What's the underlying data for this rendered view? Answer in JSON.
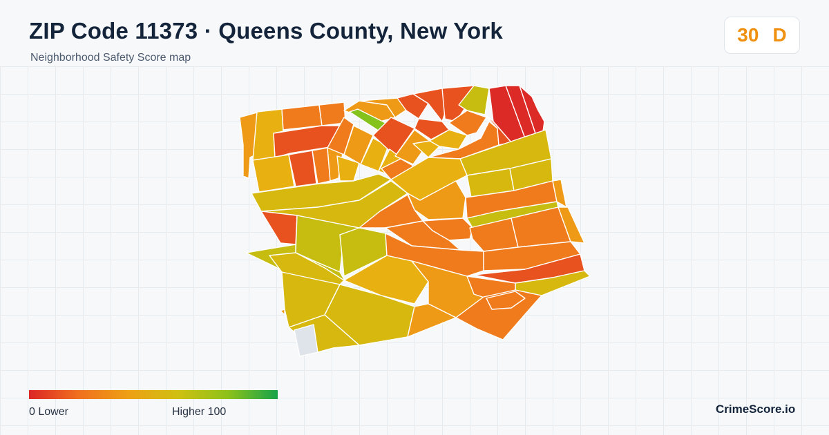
{
  "header": {
    "title": "ZIP Code 11373 · Queens County, New York",
    "subtitle": "Neighborhood Safety Score map"
  },
  "score": {
    "value": "30",
    "grade": "D",
    "color": "#f0900f"
  },
  "legend": {
    "low_label": "0  Lower",
    "high_label": "Higher  100",
    "gradient_colors": [
      "#dc2626",
      "#f0701e",
      "#eea015",
      "#cfc012",
      "#8dc11a",
      "#16a34a"
    ]
  },
  "brand": "CrimeScore.io",
  "map": {
    "block_colors": {
      "red": "#dc2b26",
      "red_orange": "#e8521e",
      "orange": "#f07b1c",
      "amber": "#ef9a17",
      "gold": "#e8b011",
      "yellow": "#d6b80f",
      "olive": "#c6bd10",
      "green": "#86c21c",
      "no_data": "#dfe3ea"
    }
  }
}
